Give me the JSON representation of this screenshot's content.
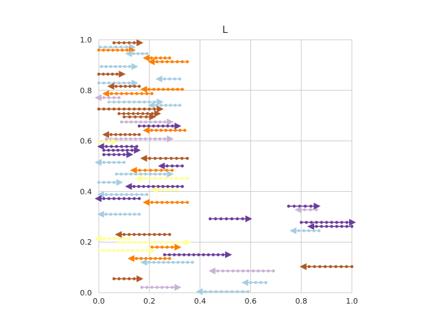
{
  "chart_data": {
    "type": "scatter",
    "title": "L",
    "xlabel": "",
    "ylabel": "",
    "xlim": [
      0,
      1
    ],
    "ylim": [
      0,
      1
    ],
    "xticks": [
      "0.0",
      "0.2",
      "0.4",
      "0.6",
      "0.8",
      "1.0"
    ],
    "yticks": [
      "0.0",
      "0.2",
      "0.4",
      "0.6",
      "0.8",
      "1.0"
    ],
    "grid": true,
    "colors": {
      "light_blue": "#a6cee3",
      "orange": "#ff7f00",
      "brown": "#b15928",
      "purple": "#6a3d9a",
      "lilac": "#cab2d6",
      "yellow": "#ffff99"
    },
    "arrows": [
      {
        "color": "brown",
        "y": 0.988,
        "x0": 0.06,
        "x1": 0.16,
        "dir": "right"
      },
      {
        "color": "light_blue",
        "y": 0.971,
        "x0": 0.005,
        "x1": 0.13,
        "dir": "right"
      },
      {
        "color": "orange",
        "y": 0.959,
        "x0": 0.0,
        "x1": 0.13,
        "dir": "right"
      },
      {
        "color": "light_blue",
        "y": 0.945,
        "x0": 0.12,
        "x1": 0.19,
        "dir": "left"
      },
      {
        "color": "orange",
        "y": 0.928,
        "x0": 0.19,
        "x1": 0.28,
        "dir": "left"
      },
      {
        "color": "orange",
        "y": 0.913,
        "x0": 0.21,
        "x1": 0.35,
        "dir": "left"
      },
      {
        "color": "light_blue",
        "y": 0.894,
        "x0": 0.01,
        "x1": 0.14,
        "dir": "right"
      },
      {
        "color": "brown",
        "y": 0.864,
        "x0": 0.0,
        "x1": 0.09,
        "dir": "right"
      },
      {
        "color": "light_blue",
        "y": 0.845,
        "x0": 0.24,
        "x1": 0.32,
        "dir": "left"
      },
      {
        "color": "light_blue",
        "y": 0.829,
        "x0": 0.0,
        "x1": 0.14,
        "dir": "right"
      },
      {
        "color": "brown",
        "y": 0.816,
        "x0": 0.05,
        "x1": 0.16,
        "dir": "left"
      },
      {
        "color": "orange",
        "y": 0.804,
        "x0": 0.18,
        "x1": 0.33,
        "dir": "left"
      },
      {
        "color": "orange",
        "y": 0.787,
        "x0": 0.03,
        "x1": 0.21,
        "dir": "left"
      },
      {
        "color": "lilac",
        "y": 0.771,
        "x0": 0.0,
        "x1": 0.08,
        "dir": "left"
      },
      {
        "color": "light_blue",
        "y": 0.754,
        "x0": 0.04,
        "x1": 0.24,
        "dir": "right"
      },
      {
        "color": "light_blue",
        "y": 0.741,
        "x0": 0.21,
        "x1": 0.32,
        "dir": "left"
      },
      {
        "color": "brown",
        "y": 0.726,
        "x0": 0.0,
        "x1": 0.24,
        "dir": "right"
      },
      {
        "color": "brown",
        "y": 0.708,
        "x0": 0.08,
        "x1": 0.23,
        "dir": "right"
      },
      {
        "color": "brown",
        "y": 0.695,
        "x0": 0.1,
        "x1": 0.21,
        "dir": "right"
      },
      {
        "color": "lilac",
        "y": 0.675,
        "x0": 0.09,
        "x1": 0.28,
        "dir": "right"
      },
      {
        "color": "purple",
        "y": 0.659,
        "x0": 0.16,
        "x1": 0.31,
        "dir": "right"
      },
      {
        "color": "orange",
        "y": 0.642,
        "x0": 0.19,
        "x1": 0.34,
        "dir": "left"
      },
      {
        "color": "brown",
        "y": 0.625,
        "x0": 0.03,
        "x1": 0.16,
        "dir": "left"
      },
      {
        "color": "lilac",
        "y": 0.608,
        "x0": 0.03,
        "x1": 0.28,
        "dir": "right"
      },
      {
        "color": "yellow",
        "y": 0.597,
        "x0": 0.0,
        "x1": 0.06,
        "dir": "right"
      },
      {
        "color": "purple",
        "y": 0.578,
        "x0": 0.01,
        "x1": 0.15,
        "dir": "left"
      },
      {
        "color": "purple",
        "y": 0.563,
        "x0": 0.02,
        "x1": 0.15,
        "dir": "right"
      },
      {
        "color": "purple",
        "y": 0.546,
        "x0": 0.02,
        "x1": 0.12,
        "dir": "right"
      },
      {
        "color": "brown",
        "y": 0.531,
        "x0": 0.18,
        "x1": 0.35,
        "dir": "left"
      },
      {
        "color": "light_blue",
        "y": 0.515,
        "x0": 0.0,
        "x1": 0.1,
        "dir": "left"
      },
      {
        "color": "purple",
        "y": 0.501,
        "x0": 0.25,
        "x1": 0.33,
        "dir": "left"
      },
      {
        "color": "orange",
        "y": 0.484,
        "x0": 0.14,
        "x1": 0.29,
        "dir": "left"
      },
      {
        "color": "light_blue",
        "y": 0.469,
        "x0": 0.07,
        "x1": 0.28,
        "dir": "right"
      },
      {
        "color": "yellow",
        "y": 0.452,
        "x0": 0.16,
        "x1": 0.35,
        "dir": "left"
      },
      {
        "color": "light_blue",
        "y": 0.436,
        "x0": 0.0,
        "x1": 0.08,
        "dir": "right"
      },
      {
        "color": "purple",
        "y": 0.42,
        "x0": 0.12,
        "x1": 0.33,
        "dir": "left"
      },
      {
        "color": "yellow",
        "y": 0.407,
        "x0": 0.22,
        "x1": 0.31,
        "dir": "left"
      },
      {
        "color": "light_blue",
        "y": 0.388,
        "x0": 0.01,
        "x1": 0.19,
        "dir": "left"
      },
      {
        "color": "purple",
        "y": 0.372,
        "x0": 0.0,
        "x1": 0.16,
        "dir": "left"
      },
      {
        "color": "orange",
        "y": 0.357,
        "x0": 0.19,
        "x1": 0.35,
        "dir": "left"
      },
      {
        "color": "purple",
        "y": 0.342,
        "x0": 0.75,
        "x1": 0.86,
        "dir": "right"
      },
      {
        "color": "lilac",
        "y": 0.328,
        "x0": 0.79,
        "x1": 0.86,
        "dir": "left"
      },
      {
        "color": "light_blue",
        "y": 0.31,
        "x0": 0.01,
        "x1": 0.16,
        "dir": "left"
      },
      {
        "color": "purple",
        "y": 0.292,
        "x0": 0.44,
        "x1": 0.59,
        "dir": "right"
      },
      {
        "color": "purple",
        "y": 0.278,
        "x0": 0.8,
        "x1": 1.0,
        "dir": "right"
      },
      {
        "color": "purple",
        "y": 0.262,
        "x0": 0.84,
        "x1": 1.0,
        "dir": "left"
      },
      {
        "color": "light_blue",
        "y": 0.245,
        "x0": 0.77,
        "x1": 0.87,
        "dir": "left"
      },
      {
        "color": "brown",
        "y": 0.23,
        "x0": 0.08,
        "x1": 0.28,
        "dir": "left"
      },
      {
        "color": "yellow",
        "y": 0.214,
        "x0": 0.0,
        "x1": 0.12,
        "dir": "left"
      },
      {
        "color": "yellow",
        "y": 0.199,
        "x0": 0.08,
        "x1": 0.35,
        "dir": "right"
      },
      {
        "color": "orange",
        "y": 0.18,
        "x0": 0.21,
        "x1": 0.31,
        "dir": "right"
      },
      {
        "color": "yellow",
        "y": 0.167,
        "x0": 0.0,
        "x1": 0.21,
        "dir": "right"
      },
      {
        "color": "purple",
        "y": 0.15,
        "x0": 0.26,
        "x1": 0.51,
        "dir": "right"
      },
      {
        "color": "orange",
        "y": 0.135,
        "x0": 0.13,
        "x1": 0.28,
        "dir": "left"
      },
      {
        "color": "light_blue",
        "y": 0.12,
        "x0": 0.18,
        "x1": 0.37,
        "dir": "left"
      },
      {
        "color": "brown",
        "y": 0.103,
        "x0": 0.81,
        "x1": 1.0,
        "dir": "left"
      },
      {
        "color": "lilac",
        "y": 0.086,
        "x0": 0.45,
        "x1": 0.69,
        "dir": "left"
      },
      {
        "color": "light_blue",
        "y": 0.04,
        "x0": 0.58,
        "x1": 0.66,
        "dir": "left"
      },
      {
        "color": "brown",
        "y": 0.055,
        "x0": 0.06,
        "x1": 0.16,
        "dir": "right"
      },
      {
        "color": "lilac",
        "y": 0.021,
        "x0": 0.17,
        "x1": 0.31,
        "dir": "right"
      },
      {
        "color": "light_blue",
        "y": 0.004,
        "x0": 0.4,
        "x1": 0.59,
        "dir": "left"
      }
    ]
  }
}
